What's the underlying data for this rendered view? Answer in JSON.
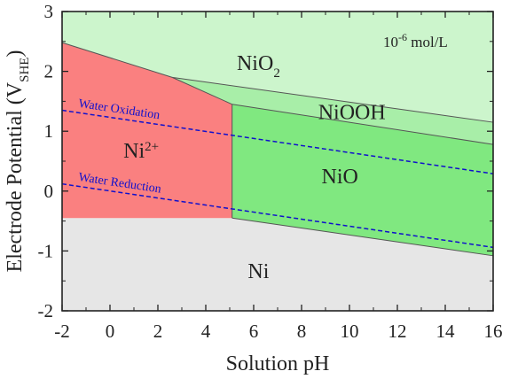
{
  "chart_data": {
    "type": "area",
    "title": "",
    "xlabel": "Solution pH",
    "ylabel_main": "Electrode Potential (V",
    "ylabel_sub": "SHE",
    "ylabel_close": ")",
    "xlim": [
      -2,
      16
    ],
    "ylim": [
      -2,
      3
    ],
    "xticks": [
      "-2",
      "0",
      "2",
      "4",
      "6",
      "8",
      "10",
      "12",
      "14",
      "16"
    ],
    "yticks": [
      "-2",
      "-1",
      "0",
      "1",
      "2",
      "3"
    ],
    "annotation": {
      "base": "10",
      "exp": "-6",
      "rest": " mol/L"
    },
    "colors": {
      "Ni": "#e6e6e6",
      "Ni2+": "#fa8080",
      "NiO": "#80e880",
      "NiOOH": "#a8eea8",
      "NiO2": "#ccf5cc",
      "boundary": "#555555",
      "water": "#1010cc"
    },
    "regions": [
      {
        "name": "Ni",
        "label": "Ni",
        "polygon": [
          [
            -2,
            -0.45
          ],
          [
            5.1,
            -0.45
          ],
          [
            16,
            -1.08
          ],
          [
            16,
            -2
          ],
          [
            -2,
            -2
          ]
        ]
      },
      {
        "name": "Ni2+",
        "label_base": "Ni",
        "label_sup": "2+",
        "polygon": [
          [
            -2,
            2.48
          ],
          [
            2.6,
            1.9
          ],
          [
            5.1,
            1.45
          ],
          [
            5.1,
            -0.45
          ],
          [
            -2,
            -0.45
          ]
        ]
      },
      {
        "name": "NiO",
        "label": "NiO",
        "polygon": [
          [
            5.1,
            1.45
          ],
          [
            16,
            0.78
          ],
          [
            16,
            -1.08
          ],
          [
            5.1,
            -0.45
          ]
        ]
      },
      {
        "name": "NiOOH",
        "label": "NiOOH",
        "polygon": [
          [
            2.6,
            1.9
          ],
          [
            16,
            1.15
          ],
          [
            16,
            0.78
          ],
          [
            5.1,
            1.45
          ]
        ]
      },
      {
        "name": "NiO2",
        "label_base": "NiO",
        "label_sub": "2",
        "polygon": [
          [
            -2,
            3
          ],
          [
            16,
            3
          ],
          [
            16,
            1.15
          ],
          [
            2.6,
            1.9
          ],
          [
            -2,
            2.48
          ]
        ]
      }
    ],
    "water_lines": [
      {
        "name": "Water Oxidation",
        "points": [
          [
            -2,
            1.35
          ],
          [
            16,
            0.29
          ]
        ]
      },
      {
        "name": "Water Reduction",
        "points": [
          [
            -2,
            0.12
          ],
          [
            16,
            -0.94
          ]
        ]
      }
    ]
  }
}
